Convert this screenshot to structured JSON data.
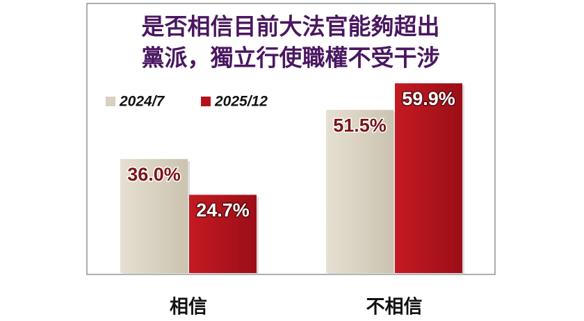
{
  "chart_data": {
    "type": "bar",
    "title": [
      "是否相信目前大法官能夠超出",
      "黨派，獨立行使職權不受干涉"
    ],
    "categories": [
      "相信",
      "不相信"
    ],
    "series": [
      {
        "name": "2024/7",
        "color": "#d8d1c0",
        "values": [
          36.0,
          51.5
        ],
        "value_labels": [
          "36.0%",
          "51.5%"
        ]
      },
      {
        "name": "2025/12",
        "color": "#b5121b",
        "values": [
          24.7,
          59.9
        ],
        "value_labels": [
          "24.7%",
          "59.9%"
        ]
      }
    ]
  }
}
